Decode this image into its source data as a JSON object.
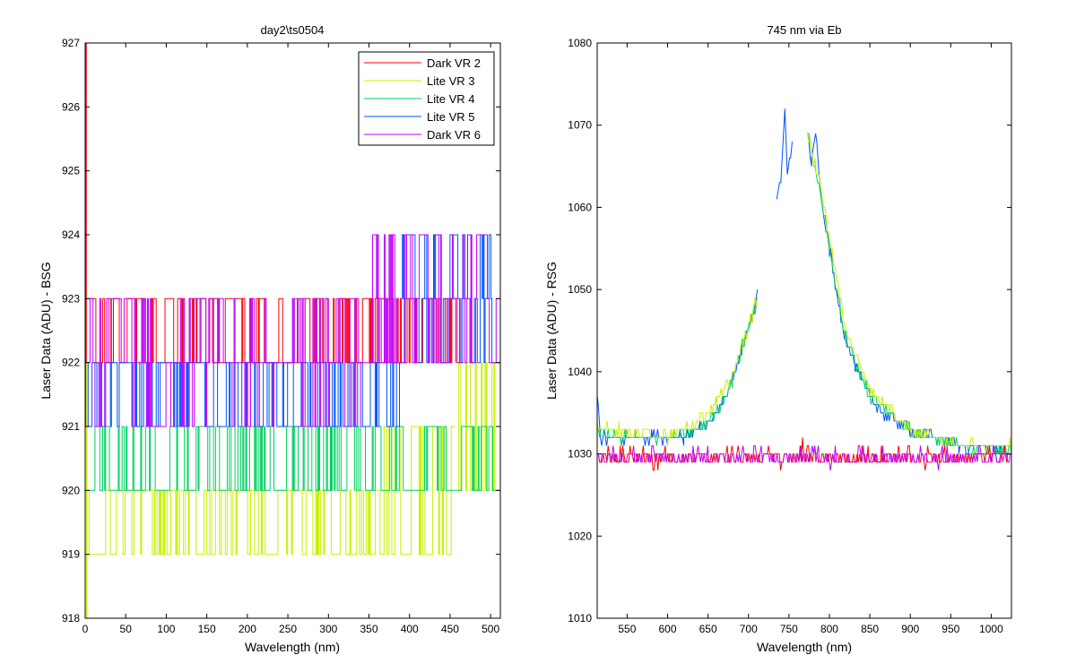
{
  "chart_data": [
    {
      "type": "line",
      "title": "day2\\ts0504",
      "xlabel": "Wavelength (nm)",
      "ylabel": "Laser Data (ADU) - BSG",
      "xlim": [
        0,
        512
      ],
      "ylim": [
        918,
        927
      ],
      "xticks": [
        "0",
        "50",
        "100",
        "150",
        "200",
        "250",
        "300",
        "350",
        "400",
        "450",
        "500"
      ],
      "yticks": [
        "918",
        "919",
        "920",
        "921",
        "922",
        "923",
        "924",
        "925",
        "926",
        "927"
      ],
      "legend_position": "top-right",
      "series": [
        {
          "name": "Dark VR 2",
          "color": "#ff0000",
          "segments": [
            {
              "x0": 0,
              "x1": 361,
              "levels": [
                922,
                923
              ]
            },
            {
              "x0": 361,
              "x1": 462,
              "levels": [
                922,
                923
              ]
            }
          ]
        },
        {
          "name": "Lite VR 3",
          "color": "#c8f000",
          "segments": [
            {
              "x0": 0,
              "x1": 365,
              "levels": [
                919,
                920
              ]
            },
            {
              "x0": 365,
              "x1": 456,
              "levels": [
                919,
                921
              ]
            },
            {
              "x0": 456,
              "x1": 512,
              "levels": [
                920,
                922
              ]
            }
          ]
        },
        {
          "name": "Lite VR 4",
          "color": "#00d060",
          "segments": [
            {
              "x0": 0,
              "x1": 385,
              "levels": [
                920,
                921
              ]
            },
            {
              "x0": 385,
              "x1": 512,
              "levels": [
                920,
                921
              ]
            }
          ]
        },
        {
          "name": "Lite VR 5",
          "color": "#0050ff",
          "segments": [
            {
              "x0": 0,
              "x1": 390,
              "levels": [
                921,
                922
              ]
            },
            {
              "x0": 390,
              "x1": 512,
              "levels": [
                922,
                923,
                924
              ]
            }
          ]
        },
        {
          "name": "Dark VR 6",
          "color": "#c000ff",
          "segments": [
            {
              "x0": 0,
              "x1": 340,
              "levels": [
                921,
                922,
                923
              ]
            },
            {
              "x0": 340,
              "x1": 512,
              "levels": [
                922,
                923,
                924
              ]
            }
          ]
        }
      ]
    },
    {
      "type": "line",
      "title": "745 nm via Eb",
      "xlabel": "Wavelength (nm)",
      "ylabel": "Laser Data (ADU) - RSG",
      "xlim": [
        513,
        1025
      ],
      "ylim": [
        1010,
        1080
      ],
      "xticks": [
        "550",
        "600",
        "650",
        "700",
        "750",
        "800",
        "850",
        "900",
        "950",
        "1000"
      ],
      "yticks": [
        "1010",
        "1020",
        "1030",
        "1040",
        "1050",
        "1060",
        "1070",
        "1080"
      ],
      "series": [
        {
          "name": "",
          "color": "#0050ff",
          "points": [
            [
              513,
              1037
            ],
            [
              517,
              1032
            ],
            [
              540,
              1032
            ],
            [
              560,
              1032
            ],
            [
              580,
              1032
            ],
            [
              600,
              1032
            ],
            [
              620,
              1032
            ],
            [
              640,
              1033
            ],
            [
              660,
              1035
            ],
            [
              680,
              1039
            ],
            [
              695,
              1044
            ],
            [
              705,
              1047
            ],
            [
              711,
              1049
            ],
            [
              711,
              null
            ],
            [
              735,
              1061
            ],
            [
              740,
              1063
            ],
            [
              745,
              1072
            ],
            [
              748,
              1064
            ],
            [
              752,
              1066
            ],
            [
              754,
              1068
            ],
            [
              754,
              null
            ],
            [
              773,
              1069
            ],
            [
              778,
              1065
            ],
            [
              783,
              1069
            ],
            [
              790,
              1061
            ],
            [
              800,
              1055
            ],
            [
              810,
              1049
            ],
            [
              820,
              1044
            ],
            [
              835,
              1040
            ],
            [
              850,
              1037
            ],
            [
              865,
              1035
            ],
            [
              880,
              1034
            ],
            [
              900,
              1033
            ],
            [
              930,
              1032
            ],
            [
              960,
              1031
            ],
            [
              990,
              1031
            ],
            [
              1025,
              1030
            ]
          ]
        },
        {
          "name": "",
          "color": "#00d060",
          "points": [
            [
              513,
              1033
            ],
            [
              540,
              1032
            ],
            [
              600,
              1032
            ],
            [
              640,
              1033
            ],
            [
              660,
              1035
            ],
            [
              680,
              1039
            ],
            [
              705,
              1047
            ],
            [
              711,
              1049
            ],
            [
              711,
              null
            ],
            [
              773,
              1069
            ],
            [
              790,
              1061
            ],
            [
              820,
              1044
            ],
            [
              850,
              1037
            ],
            [
              900,
              1033
            ],
            [
              960,
              1031
            ],
            [
              1025,
              1030
            ]
          ]
        },
        {
          "name": "",
          "color": "#c8f000",
          "points": [
            [
              513,
              1033
            ],
            [
              540,
              1033
            ],
            [
              600,
              1032
            ],
            [
              640,
              1034
            ],
            [
              660,
              1036
            ],
            [
              680,
              1040
            ],
            [
              705,
              1047
            ],
            [
              711,
              1049
            ],
            [
              711,
              null
            ],
            [
              773,
              1069
            ],
            [
              790,
              1062
            ],
            [
              820,
              1045
            ],
            [
              850,
              1038
            ],
            [
              900,
              1033
            ],
            [
              960,
              1031
            ],
            [
              1025,
              1031
            ]
          ]
        },
        {
          "name": "",
          "color": "#ff0000",
          "points": [
            [
              513,
              1030
            ],
            [
              1025,
              1030
            ]
          ]
        },
        {
          "name": "",
          "color": "#c000ff",
          "points": [
            [
              513,
              1030
            ],
            [
              1025,
              1030
            ]
          ]
        }
      ]
    }
  ]
}
